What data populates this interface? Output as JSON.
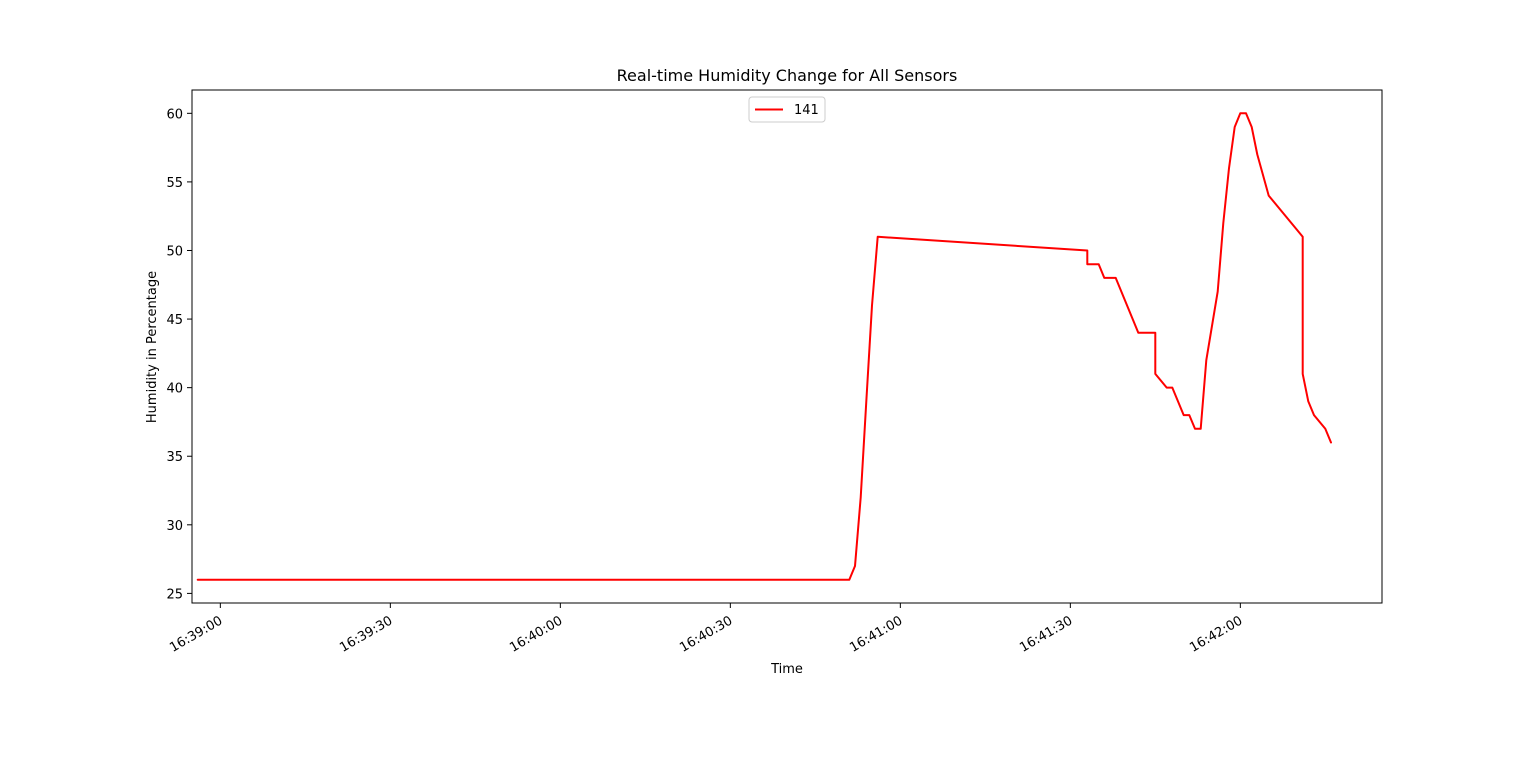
{
  "chart_data": {
    "type": "line",
    "title": "Real-time Humidity Change for All Sensors",
    "xlabel": "Time",
    "ylabel": "Humidity in Percentage",
    "legend": {
      "placement": "upper center",
      "entries": [
        "141"
      ]
    },
    "grid": false,
    "xlim": [
      "16:38:55",
      "16:42:25"
    ],
    "ylim": [
      24.3,
      61.7
    ],
    "x_ticks": [
      "16:39:00",
      "16:39:30",
      "16:40:00",
      "16:40:30",
      "16:41:00",
      "16:41:30",
      "16:42:00"
    ],
    "y_ticks": [
      25,
      30,
      35,
      40,
      45,
      50,
      55,
      60
    ],
    "series": [
      {
        "name": "141",
        "color": "#ff0000",
        "x": [
          "16:38:56",
          "16:40:51",
          "16:40:52",
          "16:40:53",
          "16:40:54",
          "16:40:55",
          "16:40:56",
          "16:41:33",
          "16:41:33",
          "16:41:35",
          "16:41:36",
          "16:41:38",
          "16:41:42",
          "16:41:45",
          "16:41:45",
          "16:41:47",
          "16:41:48",
          "16:41:50",
          "16:41:51",
          "16:41:52",
          "16:41:53",
          "16:41:54",
          "16:41:56",
          "16:41:57",
          "16:41:58",
          "16:41:59",
          "16:42:00",
          "16:42:01",
          "16:42:02",
          "16:42:03",
          "16:42:05",
          "16:42:11",
          "16:42:11",
          "16:42:12",
          "16:42:13",
          "16:42:15",
          "16:42:16"
        ],
        "y": [
          26,
          26,
          27,
          32,
          39,
          46,
          51,
          50,
          49,
          49,
          48,
          48,
          44,
          44,
          41,
          40,
          40,
          38,
          38,
          37,
          37,
          42,
          47,
          52,
          56,
          59,
          60,
          60,
          59,
          57,
          54,
          51,
          41,
          39,
          38,
          37,
          36
        ]
      }
    ]
  }
}
